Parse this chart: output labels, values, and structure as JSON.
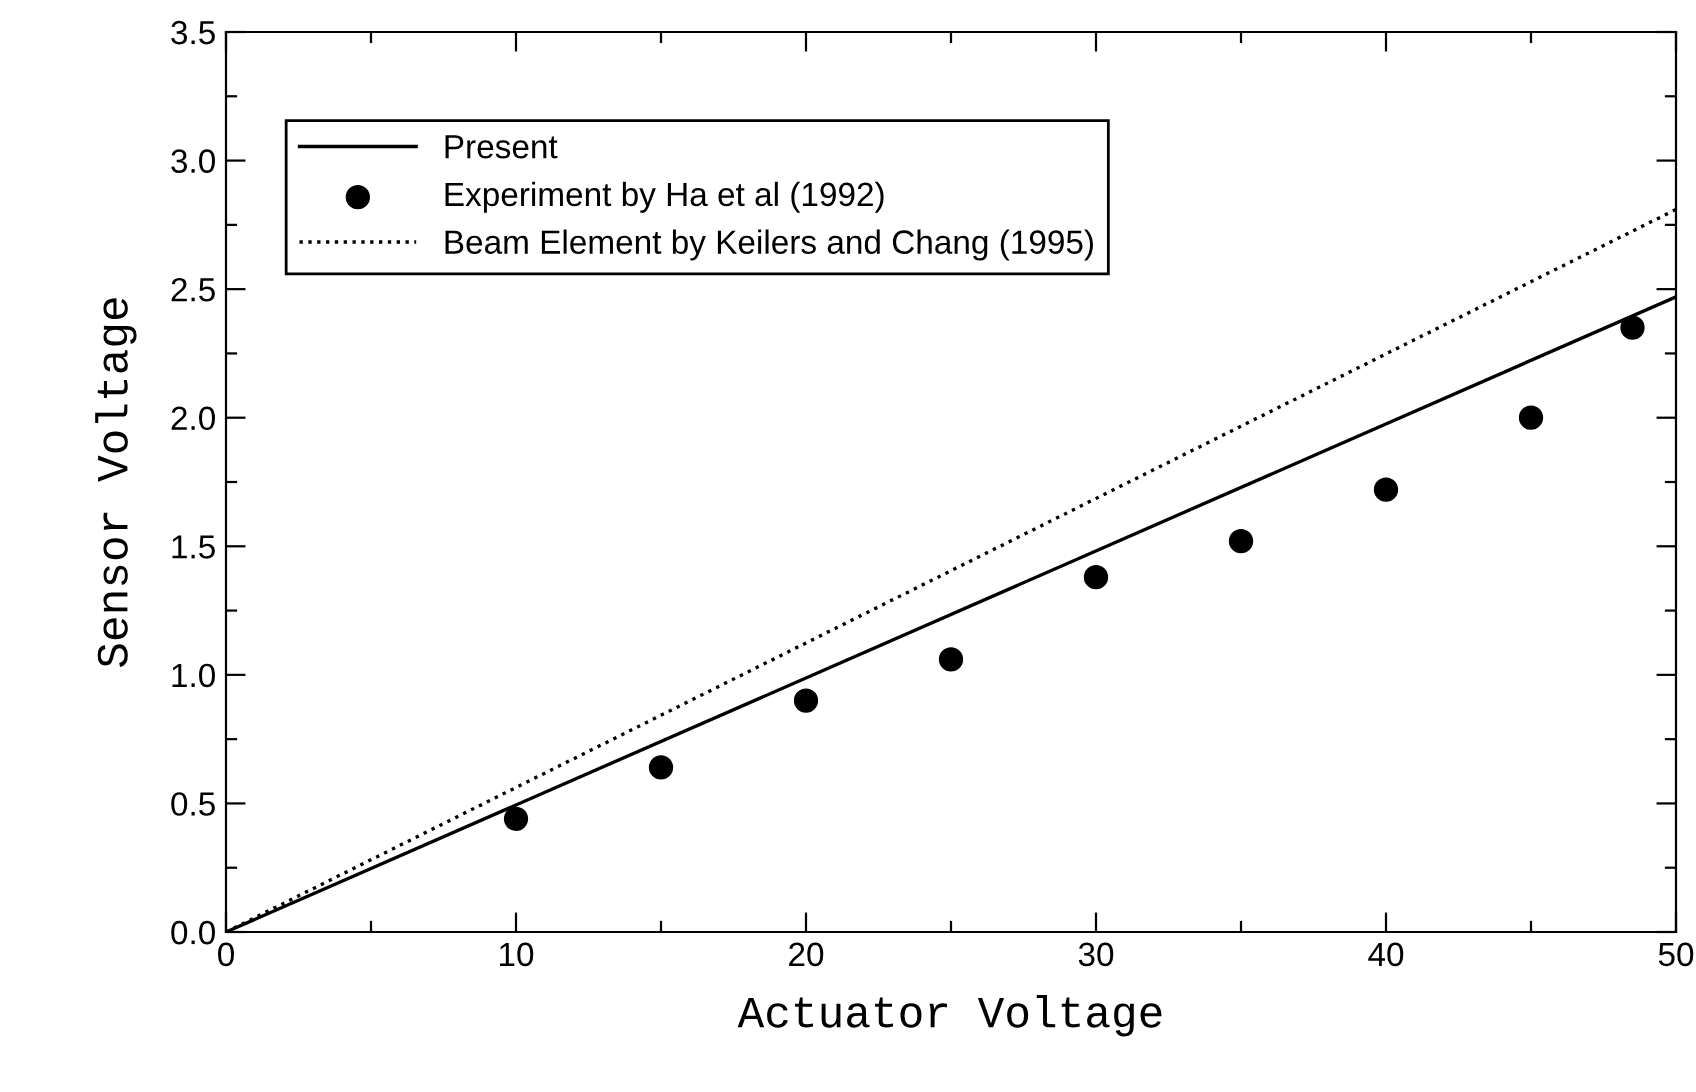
{
  "chart_data": {
    "type": "line",
    "xlabel": "Actuator Voltage",
    "ylabel": "Sensor Voltage",
    "xlim": [
      0,
      50
    ],
    "ylim": [
      0,
      3.5
    ],
    "xticks": [
      0,
      {
        "value": 5,
        "label": null
      },
      10,
      {
        "value": 15,
        "label": null
      },
      20,
      {
        "value": 25,
        "label": null
      },
      30,
      {
        "value": 35,
        "label": null
      },
      40,
      {
        "value": 45,
        "label": null
      },
      50
    ],
    "yticks": [
      {
        "value": 0,
        "label": "0.0"
      },
      {
        "value": 0.25,
        "label": null
      },
      {
        "value": 0.5,
        "label": "0.5"
      },
      {
        "value": 0.75,
        "label": null
      },
      {
        "value": 1,
        "label": "1.0"
      },
      {
        "value": 1.25,
        "label": null
      },
      {
        "value": 1.5,
        "label": "1.5"
      },
      {
        "value": 1.75,
        "label": null
      },
      {
        "value": 2,
        "label": "2.0"
      },
      {
        "value": 2.25,
        "label": null
      },
      {
        "value": 2.5,
        "label": "2.5"
      },
      {
        "value": 2.75,
        "label": null
      },
      {
        "value": 3,
        "label": "3.0"
      },
      {
        "value": 3.25,
        "label": null
      },
      {
        "value": 3.5,
        "label": "3.5"
      }
    ],
    "grid": false,
    "legend": "top left",
    "series": [
      {
        "name": "Present",
        "color": "#000000",
        "line_style": "solid",
        "marker": "none",
        "x": [
          0,
          50
        ],
        "values": [
          0,
          2.47
        ]
      },
      {
        "name": "Experiment by Ha et al (1992)",
        "type": "scatter",
        "color": "#000000",
        "marker": "circle",
        "x": [
          10,
          15,
          20,
          25,
          30,
          35,
          40,
          45,
          48.5
        ],
        "values": [
          0.44,
          0.64,
          0.9,
          1.06,
          1.38,
          1.52,
          1.72,
          2.0,
          2.35
        ]
      },
      {
        "name": "Beam Element by Keilers and Chang (1995)",
        "color": "#000000",
        "line_style": "dotted",
        "marker": "none",
        "x": [
          0,
          50
        ],
        "values": [
          0,
          2.81
        ]
      }
    ]
  }
}
